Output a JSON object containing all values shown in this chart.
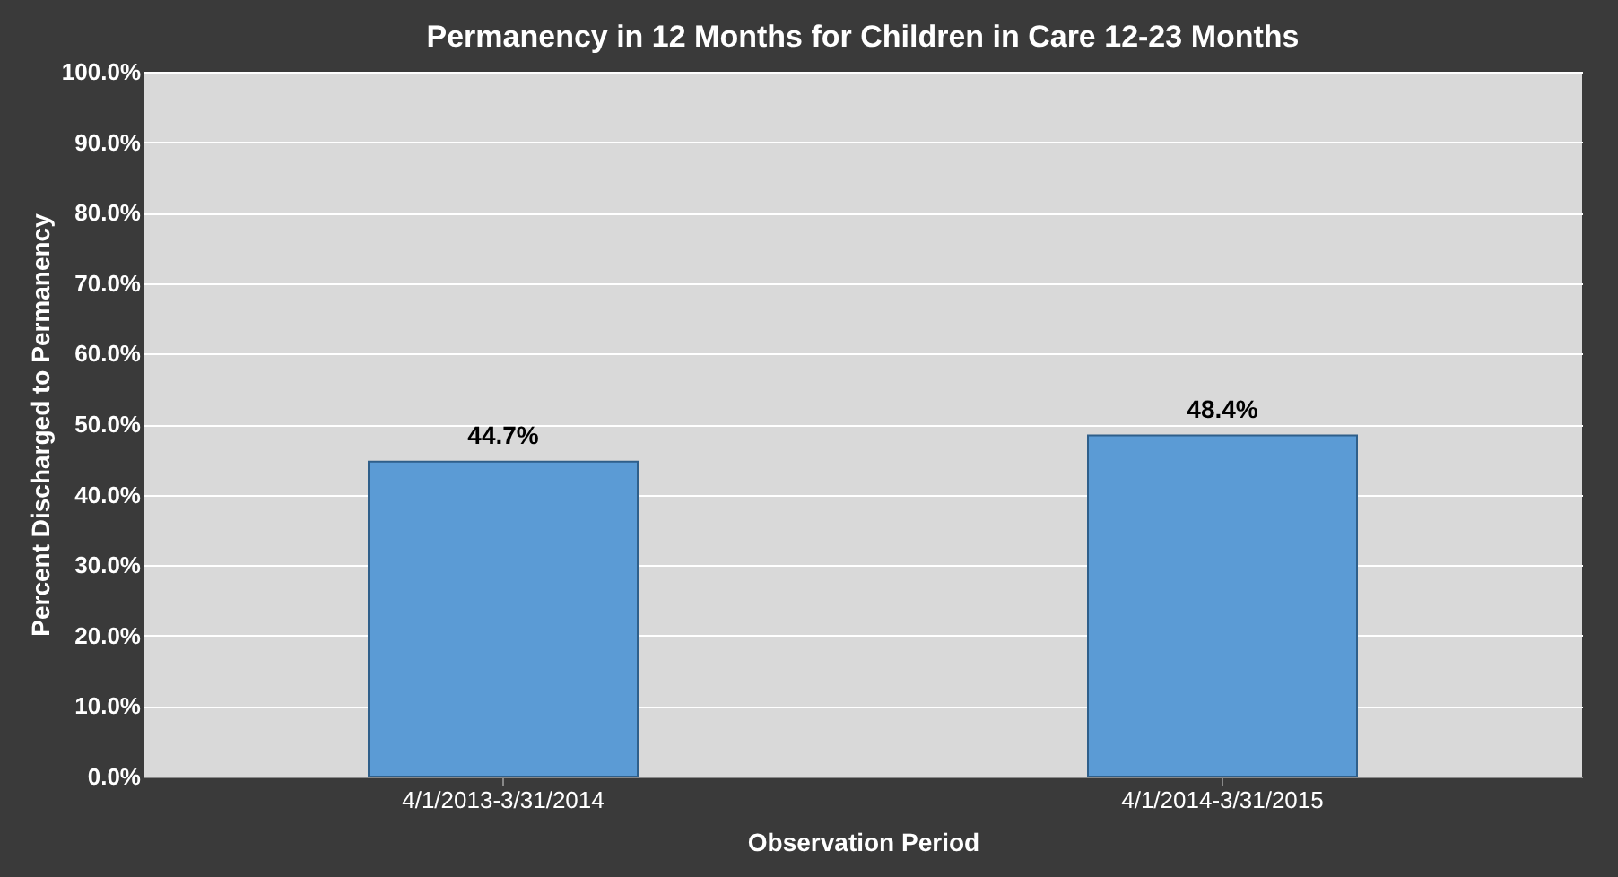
{
  "chart_data": {
    "type": "bar",
    "title": "Permanency in 12 Months for Children in Care 12-23 Months",
    "xlabel": "Observation Period",
    "ylabel": "Percent Discharged to Permanency",
    "categories": [
      "4/1/2013-3/31/2014",
      "4/1/2014-3/31/2015"
    ],
    "series": [
      {
        "color": "#5b9bd5",
        "values": [
          44.7,
          48.4
        ]
      }
    ],
    "value_labels": [
      "44.7%",
      "48.4%"
    ],
    "ylim": [
      0,
      100
    ],
    "yticks": [
      {
        "value": 0,
        "label": "0.0%"
      },
      {
        "value": 10,
        "label": "10.0%"
      },
      {
        "value": 20,
        "label": "20.0%"
      },
      {
        "value": 30,
        "label": "30.0%"
      },
      {
        "value": 40,
        "label": "40.0%"
      },
      {
        "value": 50,
        "label": "50.0%"
      },
      {
        "value": 60,
        "label": "60.0%"
      },
      {
        "value": 70,
        "label": "70.0%"
      },
      {
        "value": 80,
        "label": "80.0%"
      },
      {
        "value": 90,
        "label": "90.0%"
      },
      {
        "value": 100,
        "label": "100.0%"
      }
    ],
    "grid": "y"
  }
}
